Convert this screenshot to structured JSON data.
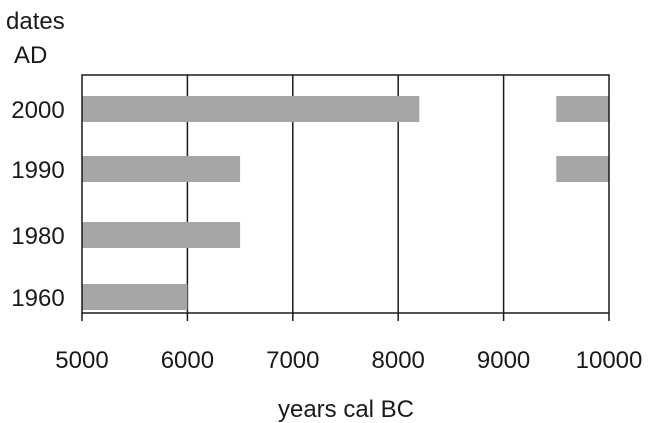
{
  "chart_data": {
    "type": "bar",
    "orientation": "horizontal",
    "ylabel": "dates AD",
    "ylabel_lines": [
      "dates",
      "AD"
    ],
    "xlabel": "years cal BC",
    "xlim": [
      5000,
      10000
    ],
    "xticks": [
      5000,
      6000,
      7000,
      8000,
      9000,
      10000
    ],
    "xtick_labels": [
      "5000",
      "6000",
      "7000",
      "8000",
      "9000",
      "10000"
    ],
    "categories": [
      "2000",
      "1990",
      "1980",
      "1960"
    ],
    "ranges": [
      [
        [
          5000,
          8200
        ],
        [
          9500,
          10000
        ]
      ],
      [
        [
          5000,
          6500
        ],
        [
          9500,
          10000
        ]
      ],
      [
        [
          5000,
          6500
        ]
      ],
      [
        [
          5000,
          6000
        ]
      ]
    ],
    "grid": "vertical",
    "bar_color": "#a6a6a7",
    "line_color": "#1a1a1a"
  }
}
